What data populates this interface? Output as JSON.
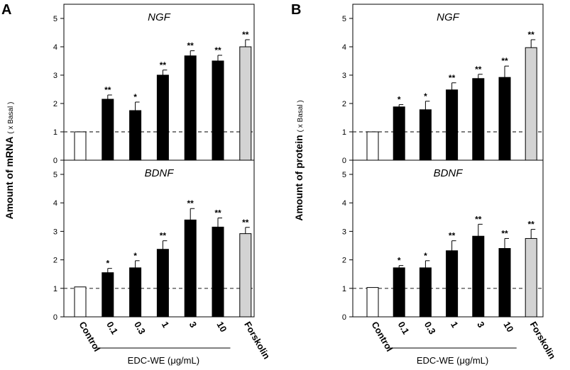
{
  "panels": [
    {
      "id": "A",
      "letter": "A",
      "ylabel": "Amount  of mRNA",
      "ylabel_unit": "( x Basal )",
      "chart_data": [
        {
          "type": "bar",
          "title": "NGF",
          "categories": [
            "Control",
            "0.1",
            "0.3",
            "1",
            "3",
            "10",
            "Forskolin"
          ],
          "values": [
            1.0,
            2.15,
            1.75,
            3.0,
            3.68,
            3.5,
            4.0
          ],
          "errors": [
            0,
            0.15,
            0.3,
            0.18,
            0.18,
            0.2,
            0.25
          ],
          "significance": [
            "",
            "**",
            "*",
            "**",
            "**",
            "**",
            "**"
          ],
          "bar_colors": [
            "#ffffff",
            "#000000",
            "#000000",
            "#000000",
            "#000000",
            "#000000",
            "#d3d3d3"
          ],
          "ylim": [
            0,
            5
          ],
          "yticks": [
            "0",
            "1",
            "2",
            "3",
            "4",
            "5"
          ],
          "reference_line": 1
        },
        {
          "type": "bar",
          "title": "BDNF",
          "categories": [
            "Control",
            "0.1",
            "0.3",
            "1",
            "3",
            "10",
            "Forskolin"
          ],
          "values": [
            1.05,
            1.55,
            1.72,
            2.37,
            3.4,
            3.15,
            2.92
          ],
          "errors": [
            0,
            0.15,
            0.25,
            0.3,
            0.4,
            0.32,
            0.22
          ],
          "significance": [
            "",
            "*",
            "*",
            "**",
            "**",
            "**",
            "**"
          ],
          "bar_colors": [
            "#ffffff",
            "#000000",
            "#000000",
            "#000000",
            "#000000",
            "#000000",
            "#d3d3d3"
          ],
          "ylim": [
            0,
            5
          ],
          "yticks": [
            "0",
            "1",
            "2",
            "3",
            "4",
            "5"
          ],
          "reference_line": 1
        }
      ],
      "xticks": [
        "Control",
        "0.1",
        "0.3",
        "1",
        "3",
        "10",
        "Forskolin"
      ],
      "xgroup_label": "EDC-WE  (μg/mL)"
    },
    {
      "id": "B",
      "letter": "B",
      "ylabel": "Amount  of protein",
      "ylabel_unit": "( x Basal )",
      "chart_data": [
        {
          "type": "bar",
          "title": "NGF",
          "categories": [
            "Control",
            "0.1",
            "0.3",
            "1",
            "3",
            "10",
            "Forskolin"
          ],
          "values": [
            1.0,
            1.88,
            1.78,
            2.48,
            2.88,
            2.92,
            3.97
          ],
          "errors": [
            0,
            0.08,
            0.3,
            0.25,
            0.15,
            0.4,
            0.28
          ],
          "significance": [
            "",
            "*",
            "*",
            "**",
            "**",
            "**",
            "**"
          ],
          "bar_colors": [
            "#ffffff",
            "#000000",
            "#000000",
            "#000000",
            "#000000",
            "#000000",
            "#d3d3d3"
          ],
          "ylim": [
            0,
            5
          ],
          "yticks": [
            "0",
            "1",
            "2",
            "3",
            "4",
            "5"
          ],
          "reference_line": 1
        },
        {
          "type": "bar",
          "title": "BDNF",
          "categories": [
            "Control",
            "0.1",
            "0.3",
            "1",
            "3",
            "10",
            "Forskolin"
          ],
          "values": [
            1.03,
            1.72,
            1.72,
            2.32,
            2.83,
            2.4,
            2.75
          ],
          "errors": [
            0,
            0.08,
            0.25,
            0.35,
            0.42,
            0.35,
            0.32
          ],
          "significance": [
            "",
            "*",
            "*",
            "**",
            "**",
            "**",
            "**"
          ],
          "bar_colors": [
            "#ffffff",
            "#000000",
            "#000000",
            "#000000",
            "#000000",
            "#000000",
            "#d3d3d3"
          ],
          "ylim": [
            0,
            5
          ],
          "yticks": [
            "0",
            "1",
            "2",
            "3",
            "4",
            "5"
          ],
          "reference_line": 1
        }
      ],
      "xticks": [
        "Control",
        "0.1",
        "0.3",
        "1",
        "3",
        "10",
        "Forskolin"
      ],
      "xgroup_label": "EDC-WE  (μg/mL)"
    }
  ]
}
